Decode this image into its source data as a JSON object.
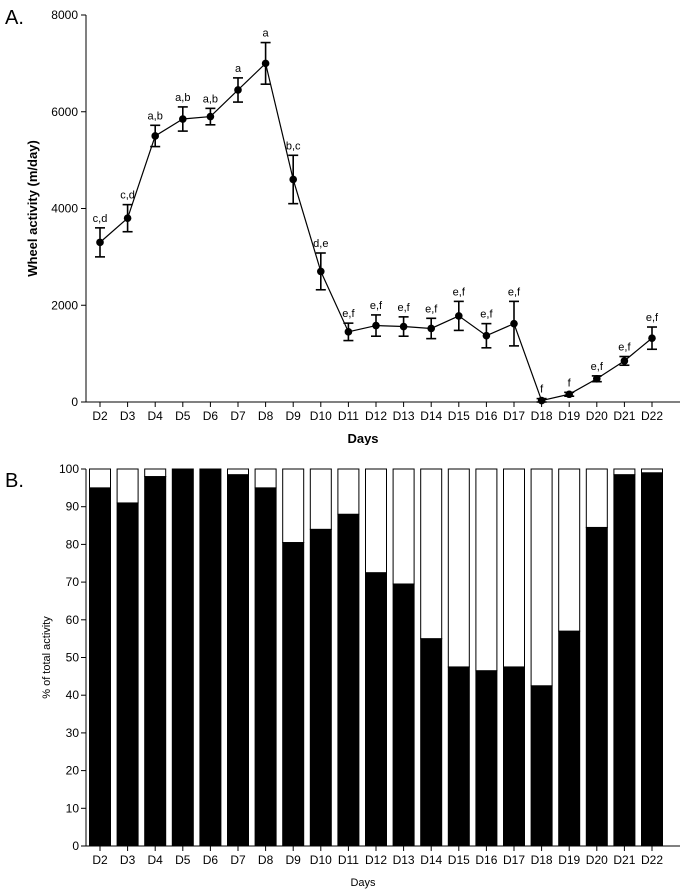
{
  "chart_data": [
    {
      "type": "line",
      "panel_label": "A.",
      "xlabel": "Days",
      "ylabel": "Wheel activity (m/day)",
      "ylim": [
        0,
        8000
      ],
      "yticks": [
        "0",
        "2000",
        "4000",
        "6000",
        "8000"
      ],
      "categories": [
        "D2",
        "D3",
        "D4",
        "D5",
        "D6",
        "D7",
        "D8",
        "D9",
        "D10",
        "D11",
        "D12",
        "D13",
        "D14",
        "D15",
        "D16",
        "D17",
        "D18",
        "D19",
        "D20",
        "D21",
        "D22"
      ],
      "values": [
        3300,
        3800,
        5500,
        5850,
        5900,
        6450,
        7000,
        4600,
        2700,
        1450,
        1580,
        1560,
        1520,
        1780,
        1370,
        1620,
        30,
        160,
        480,
        850,
        1320
      ],
      "errors": [
        300,
        280,
        220,
        250,
        170,
        250,
        430,
        500,
        380,
        180,
        220,
        200,
        210,
        300,
        250,
        460,
        40,
        40,
        60,
        90,
        230
      ],
      "annotations": [
        "c,d",
        "c,d",
        "a,b",
        "a,b",
        "a,b",
        "a",
        "a",
        "b,c",
        "d,e",
        "e,f",
        "e,f",
        "e,f",
        "e,f",
        "e,f",
        "e,f",
        "e,f",
        "f",
        "f",
        "e,f",
        "e,f",
        "e,f"
      ],
      "grid": false,
      "legend": "none"
    },
    {
      "type": "bar",
      "stacked": true,
      "panel_label": "B.",
      "xlabel": "Days",
      "ylabel": "% of total activity",
      "ylim": [
        0,
        100
      ],
      "yticks": [
        "0",
        "10",
        "20",
        "30",
        "40",
        "50",
        "60",
        "70",
        "80",
        "90",
        "100"
      ],
      "categories": [
        "D2",
        "D3",
        "D4",
        "D5",
        "D6",
        "D7",
        "D8",
        "D9",
        "D10",
        "D11",
        "D12",
        "D13",
        "D14",
        "D15",
        "D16",
        "D17",
        "D18",
        "D19",
        "D20",
        "D21",
        "D22"
      ],
      "series": [
        {
          "color": "#000000",
          "values": [
            95,
            91,
            98,
            100,
            100,
            98.5,
            95,
            80.5,
            84,
            88,
            72.5,
            69.5,
            55,
            47.5,
            46.5,
            47.5,
            42.5,
            57,
            84.5,
            98.5,
            99
          ]
        },
        {
          "color": "#ffffff",
          "values": [
            5,
            9,
            2,
            0,
            0,
            1.5,
            5,
            19.5,
            16,
            12,
            27.5,
            30.5,
            45,
            52.5,
            53.5,
            52.5,
            57.5,
            43,
            15.5,
            1.5,
            1
          ]
        }
      ],
      "grid": false,
      "legend": "none"
    }
  ]
}
